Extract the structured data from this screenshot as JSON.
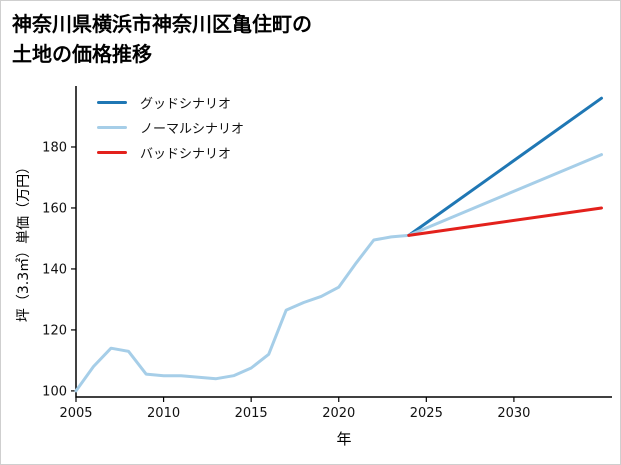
{
  "page": {
    "title_line1": "神奈川県横浜市神奈川区亀住町の",
    "title_line2": "土地の価格推移"
  },
  "chart_data": {
    "type": "line",
    "title": "神奈川県横浜市神奈川区亀住町の土地の価格推移",
    "xlabel": "年",
    "ylabel": "坪（3.3㎡）単価（万円）",
    "xlim": [
      2005,
      2035.6
    ],
    "ylim": [
      98,
      200
    ],
    "xticks": [
      2005,
      2010,
      2015,
      2020,
      2025,
      2030
    ],
    "yticks": [
      100,
      120,
      140,
      160,
      180
    ],
    "grid": false,
    "legend_position": "upper-left",
    "axis_color": "#000000",
    "series": [
      {
        "id": "historical-price",
        "name": "",
        "color": "#a6cee8",
        "width": 3,
        "x": [
          2005,
          2006,
          2007,
          2008,
          2009,
          2010,
          2011,
          2012,
          2013,
          2014,
          2015,
          2016,
          2017,
          2018,
          2019,
          2020,
          2021,
          2022,
          2023,
          2024
        ],
        "y": [
          100,
          108,
          114,
          113,
          105.5,
          105,
          105,
          104.5,
          104,
          105,
          107.5,
          112,
          126.5,
          129,
          131,
          134,
          142,
          149.5,
          150.5,
          151
        ]
      },
      {
        "id": "good-scenario",
        "name": "グッドシナリオ",
        "color": "#1f77b4",
        "width": 3,
        "x": [
          2024,
          2035
        ],
        "y": [
          151,
          196
        ]
      },
      {
        "id": "normal-scenario",
        "name": "ノーマルシナリオ",
        "color": "#a6cee8",
        "width": 3,
        "x": [
          2024,
          2035
        ],
        "y": [
          151,
          177.5
        ]
      },
      {
        "id": "bad-scenario",
        "name": "バッドシナリオ",
        "color": "#e3211c",
        "width": 3,
        "x": [
          2024,
          2035
        ],
        "y": [
          151,
          160
        ]
      }
    ]
  }
}
